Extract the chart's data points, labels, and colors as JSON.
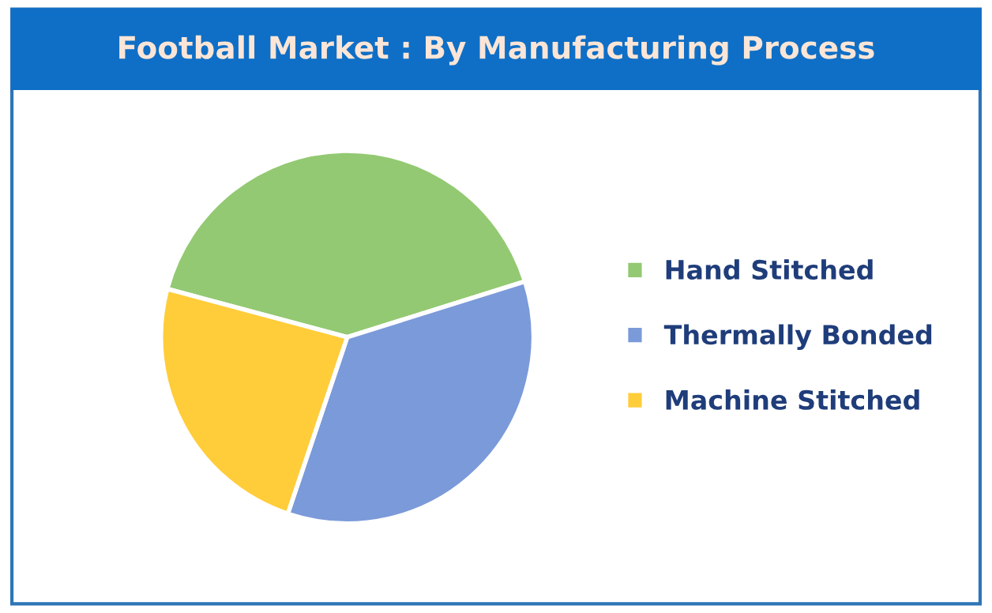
{
  "chart_data": {
    "type": "pie",
    "title": "Football Market : By Manufacturing Process",
    "categories": [
      "Hand Stitched",
      "Thermally Bonded",
      "Machine Stitched"
    ],
    "values": [
      41,
      35,
      24
    ],
    "colors": [
      "#93c972",
      "#7b9ad9",
      "#ffcd3a"
    ],
    "legend": "right"
  }
}
